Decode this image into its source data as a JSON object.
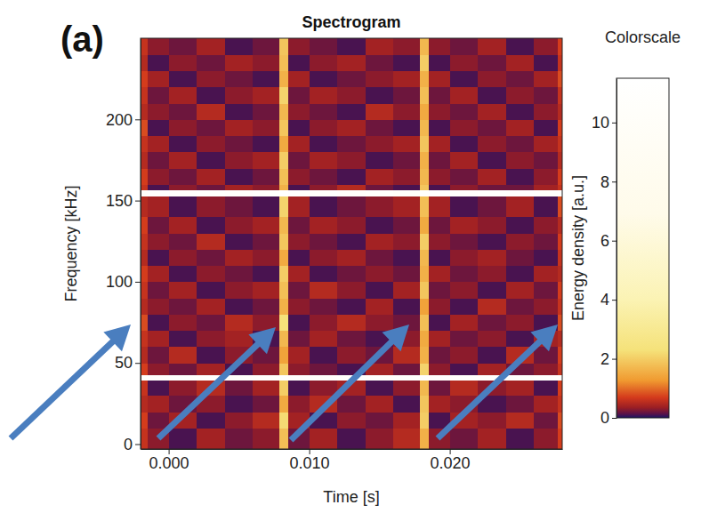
{
  "chart_data": {
    "type": "heatmap",
    "panel_label": "(a)",
    "title": "Spectrogram",
    "x_label": "Time [s]",
    "y_label": "Frequency [kHz]",
    "xlim": [
      -0.002,
      0.028
    ],
    "ylim": [
      -3,
      250
    ],
    "xticks": [
      {
        "value": 0,
        "label": "0.000"
      },
      {
        "value": 0.01,
        "label": "0.010"
      },
      {
        "value": 0.02,
        "label": "0.020"
      }
    ],
    "yticks": [
      0,
      50,
      100,
      150,
      200
    ],
    "x_bins": [
      -0.002,
      -0.0015,
      0,
      0.002,
      0.004,
      0.006,
      0.0079,
      0.0085,
      0.01,
      0.012,
      0.014,
      0.016,
      0.0179,
      0.0185,
      0.02,
      0.022,
      0.024,
      0.026,
      0.0277,
      0.028
    ],
    "y_bins": [
      -3,
      10,
      20,
      30,
      39.5,
      43,
      50,
      60,
      70,
      80,
      90,
      100,
      110,
      120,
      130,
      140,
      153,
      156.5,
      160,
      170,
      180,
      190,
      200,
      210,
      220,
      230,
      240,
      250
    ],
    "z": [
      [
        0.6,
        0.3,
        0.1,
        0.4,
        0.2,
        0.3,
        1.8,
        0.2,
        0.4,
        0.1,
        0.3,
        0.5,
        1.6,
        0.3,
        0.2,
        0.4,
        0.1,
        0.3,
        0.7
      ],
      [
        0.7,
        0.2,
        0.4,
        0.1,
        0.3,
        0.5,
        2.2,
        0.4,
        0.1,
        0.3,
        0.2,
        0.4,
        2.0,
        0.1,
        0.4,
        0.3,
        0.5,
        0.2,
        0.8
      ],
      [
        0.5,
        0.4,
        0.2,
        0.3,
        0.1,
        0.2,
        1.5,
        0.3,
        0.5,
        0.2,
        0.4,
        0.1,
        1.9,
        0.4,
        0.3,
        0.1,
        0.2,
        0.4,
        0.6
      ],
      [
        0.6,
        0.1,
        0.3,
        0.5,
        0.2,
        0.4,
        2.0,
        0.1,
        0.3,
        0.4,
        0.1,
        0.3,
        1.7,
        0.2,
        0.5,
        0.3,
        0.4,
        0.1,
        0.7
      ],
      [
        10.5,
        10.8,
        11.0,
        10.9,
        11.1,
        10.7,
        11.2,
        10.9,
        10.8,
        11.0,
        10.6,
        10.9,
        11.1,
        10.8,
        11.0,
        10.7,
        10.9,
        11.0,
        10.6
      ],
      [
        0.7,
        0.3,
        0.2,
        0.4,
        0.1,
        0.3,
        1.9,
        0.3,
        0.2,
        0.1,
        0.4,
        0.2,
        2.1,
        0.3,
        0.1,
        0.4,
        0.2,
        0.3,
        0.6
      ],
      [
        0.5,
        0.2,
        0.5,
        0.1,
        0.3,
        0.2,
        1.4,
        0.4,
        0.1,
        0.3,
        0.2,
        0.5,
        1.6,
        0.2,
        0.3,
        0.1,
        0.5,
        0.2,
        0.7
      ],
      [
        0.6,
        0.4,
        0.1,
        0.3,
        0.4,
        0.1,
        1.7,
        0.2,
        0.4,
        0.2,
        0.1,
        0.3,
        1.5,
        0.4,
        0.2,
        0.3,
        0.1,
        0.4,
        0.5
      ],
      [
        0.8,
        0.1,
        0.3,
        0.2,
        0.5,
        0.3,
        2.3,
        0.1,
        0.3,
        0.5,
        0.3,
        0.2,
        1.8,
        0.1,
        0.4,
        0.2,
        0.3,
        0.1,
        0.8
      ],
      [
        0.5,
        0.3,
        0.2,
        0.4,
        0.1,
        0.2,
        1.6,
        0.3,
        0.2,
        0.1,
        0.4,
        0.1,
        1.4,
        0.3,
        0.1,
        0.5,
        0.2,
        0.3,
        0.6
      ],
      [
        0.6,
        0.2,
        0.4,
        0.1,
        0.3,
        0.4,
        1.8,
        0.2,
        0.5,
        0.3,
        0.1,
        0.4,
        1.9,
        0.2,
        0.3,
        0.1,
        0.4,
        0.2,
        0.7
      ],
      [
        0.7,
        0.4,
        0.1,
        0.3,
        0.2,
        0.1,
        2.0,
        0.4,
        0.1,
        0.2,
        0.3,
        0.2,
        1.6,
        0.4,
        0.2,
        0.3,
        0.1,
        0.4,
        0.5
      ],
      [
        0.5,
        0.1,
        0.3,
        0.2,
        0.4,
        0.3,
        1.5,
        0.1,
        0.3,
        0.4,
        0.2,
        0.1,
        1.7,
        0.1,
        0.3,
        0.4,
        0.2,
        0.1,
        0.6
      ],
      [
        0.6,
        0.3,
        0.2,
        0.5,
        0.1,
        0.2,
        1.9,
        0.3,
        0.2,
        0.1,
        0.4,
        0.3,
        2.0,
        0.3,
        0.2,
        0.1,
        0.3,
        0.2,
        0.7
      ],
      [
        0.7,
        0.2,
        0.4,
        0.1,
        0.3,
        0.4,
        1.7,
        0.2,
        0.4,
        0.3,
        0.1,
        0.2,
        1.5,
        0.2,
        0.4,
        0.3,
        0.1,
        0.3,
        0.5
      ],
      [
        0.5,
        0.4,
        0.1,
        0.3,
        0.2,
        0.1,
        2.1,
        0.4,
        0.1,
        0.2,
        0.3,
        0.4,
        1.8,
        0.4,
        0.1,
        0.2,
        0.4,
        0.1,
        0.8
      ],
      [
        10.7,
        11.0,
        10.8,
        11.1,
        10.9,
        11.0,
        11.2,
        10.8,
        11.0,
        10.9,
        11.1,
        10.7,
        11.2,
        10.9,
        10.8,
        11.0,
        10.9,
        10.7,
        10.8
      ],
      [
        0.6,
        0.1,
        0.3,
        0.2,
        0.4,
        0.3,
        1.6,
        0.1,
        0.3,
        0.5,
        0.2,
        0.1,
        1.9,
        0.1,
        0.3,
        0.2,
        0.2,
        0.4,
        0.6
      ],
      [
        0.7,
        0.3,
        0.2,
        0.4,
        0.1,
        0.2,
        1.8,
        0.3,
        0.2,
        0.1,
        0.4,
        0.3,
        1.7,
        0.3,
        0.2,
        0.4,
        0.1,
        0.3,
        0.7
      ],
      [
        0.5,
        0.2,
        0.4,
        0.1,
        0.3,
        0.4,
        2.0,
        0.2,
        0.4,
        0.3,
        0.1,
        0.2,
        1.6,
        0.2,
        0.4,
        0.1,
        0.3,
        0.2,
        0.5
      ],
      [
        0.6,
        0.4,
        0.1,
        0.3,
        0.2,
        0.1,
        1.5,
        0.4,
        0.1,
        0.2,
        0.3,
        0.4,
        1.9,
        0.4,
        0.1,
        0.3,
        0.2,
        0.4,
        0.6
      ],
      [
        0.8,
        0.1,
        0.3,
        0.2,
        0.4,
        0.3,
        1.9,
        0.1,
        0.3,
        0.4,
        0.2,
        0.1,
        1.7,
        0.1,
        0.3,
        0.2,
        0.4,
        0.1,
        0.7
      ],
      [
        0.5,
        0.3,
        0.2,
        0.5,
        0.1,
        0.2,
        1.7,
        0.3,
        0.2,
        0.1,
        0.5,
        0.3,
        1.5,
        0.3,
        0.2,
        0.4,
        0.1,
        0.3,
        0.5
      ],
      [
        0.6,
        0.2,
        0.4,
        0.1,
        0.3,
        0.4,
        2.1,
        0.2,
        0.4,
        0.3,
        0.1,
        0.2,
        1.8,
        0.2,
        0.4,
        0.1,
        0.3,
        0.2,
        0.6
      ],
      [
        0.7,
        0.4,
        0.1,
        0.3,
        0.2,
        0.1,
        1.6,
        0.4,
        0.1,
        0.2,
        0.3,
        0.4,
        1.6,
        0.4,
        0.1,
        0.3,
        0.2,
        0.4,
        0.8
      ],
      [
        0.5,
        0.1,
        0.3,
        0.2,
        0.4,
        0.3,
        1.8,
        0.1,
        0.3,
        0.4,
        0.2,
        0.1,
        2.0,
        0.1,
        0.3,
        0.2,
        0.4,
        0.1,
        0.6
      ],
      [
        0.6,
        0.3,
        0.2,
        0.4,
        0.1,
        0.2,
        1.9,
        0.3,
        0.2,
        0.1,
        0.4,
        0.3,
        1.7,
        0.3,
        0.2,
        0.4,
        0.1,
        0.3,
        0.7
      ]
    ],
    "colorbar": {
      "title": "Colorscale",
      "label": "Energy density [a.u.]",
      "range": [
        0,
        11.5
      ],
      "ticks": [
        0,
        2,
        4,
        6,
        8,
        10
      ]
    }
  }
}
